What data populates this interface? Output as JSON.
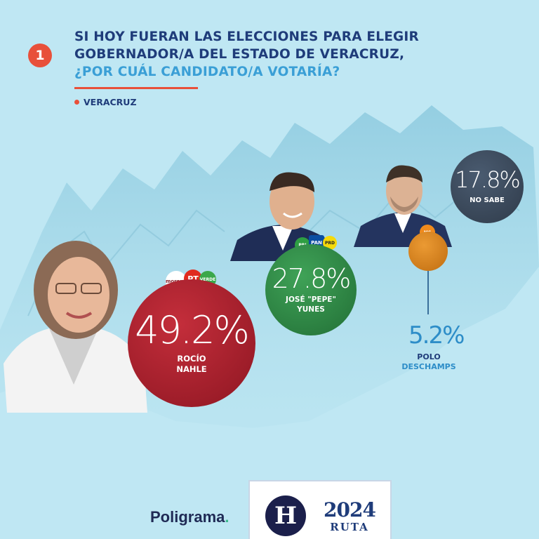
{
  "question": {
    "number": "1",
    "line1": "SI HOY FUERAN LAS ELECCIONES PARA ELEGIR",
    "line2": "GOBERNADOR/A DEL ESTADO DE VERACRUZ,",
    "line3": "¿POR CUÁL CANDIDATO/A VOTARÍA?",
    "region": "VERACRUZ"
  },
  "chart_data": {
    "type": "bubble",
    "title": "SI HOY FUERAN LAS ELECCIONES PARA ELEGIR GOBERNADOR/A DEL ESTADO DE VERACRUZ, ¿POR CUÁL CANDIDATO/A VOTARÍA?",
    "categories": [
      "ROCÍO NAHLE",
      "JOSÉ \"PEPE\" YUNES",
      "POLO DESCHAMPS",
      "NO SABE"
    ],
    "values": [
      49.2,
      27.8,
      5.2,
      17.8
    ],
    "series": [
      {
        "name_line1": "ROCÍO",
        "name_line2": "NAHLE",
        "value": 49.2,
        "label": "49.2%",
        "color": "#a21d2b",
        "parties": [
          "morena",
          "PT",
          "VERDE"
        ]
      },
      {
        "name_line1": "JOSÉ \"PEPE\"",
        "name_line2": "YUNES",
        "value": 27.8,
        "label": "27.8%",
        "color": "#2f8a45",
        "parties": [
          "PRI",
          "PAN",
          "PRD"
        ]
      },
      {
        "name_line1": "POLO",
        "name_line2": "DESCHAMPS",
        "value": 5.2,
        "label": "5.2%",
        "color": "#d9821d",
        "parties": [
          "MC"
        ]
      },
      {
        "name_line1": "NO SABE",
        "name_line2": "",
        "value": 17.8,
        "label": "17.8%",
        "color": "#3b4a5c"
      }
    ]
  },
  "footer": {
    "brand": "Poligrama",
    "brand_dot": ".",
    "logo_letter": "H",
    "logo_year": "2024",
    "logo_text": "RUTA"
  },
  "colors": {
    "background": "#bfe7f3",
    "title": "#1f3c7a",
    "accent": "#e8503a",
    "highlight": "#3a9fd6"
  }
}
